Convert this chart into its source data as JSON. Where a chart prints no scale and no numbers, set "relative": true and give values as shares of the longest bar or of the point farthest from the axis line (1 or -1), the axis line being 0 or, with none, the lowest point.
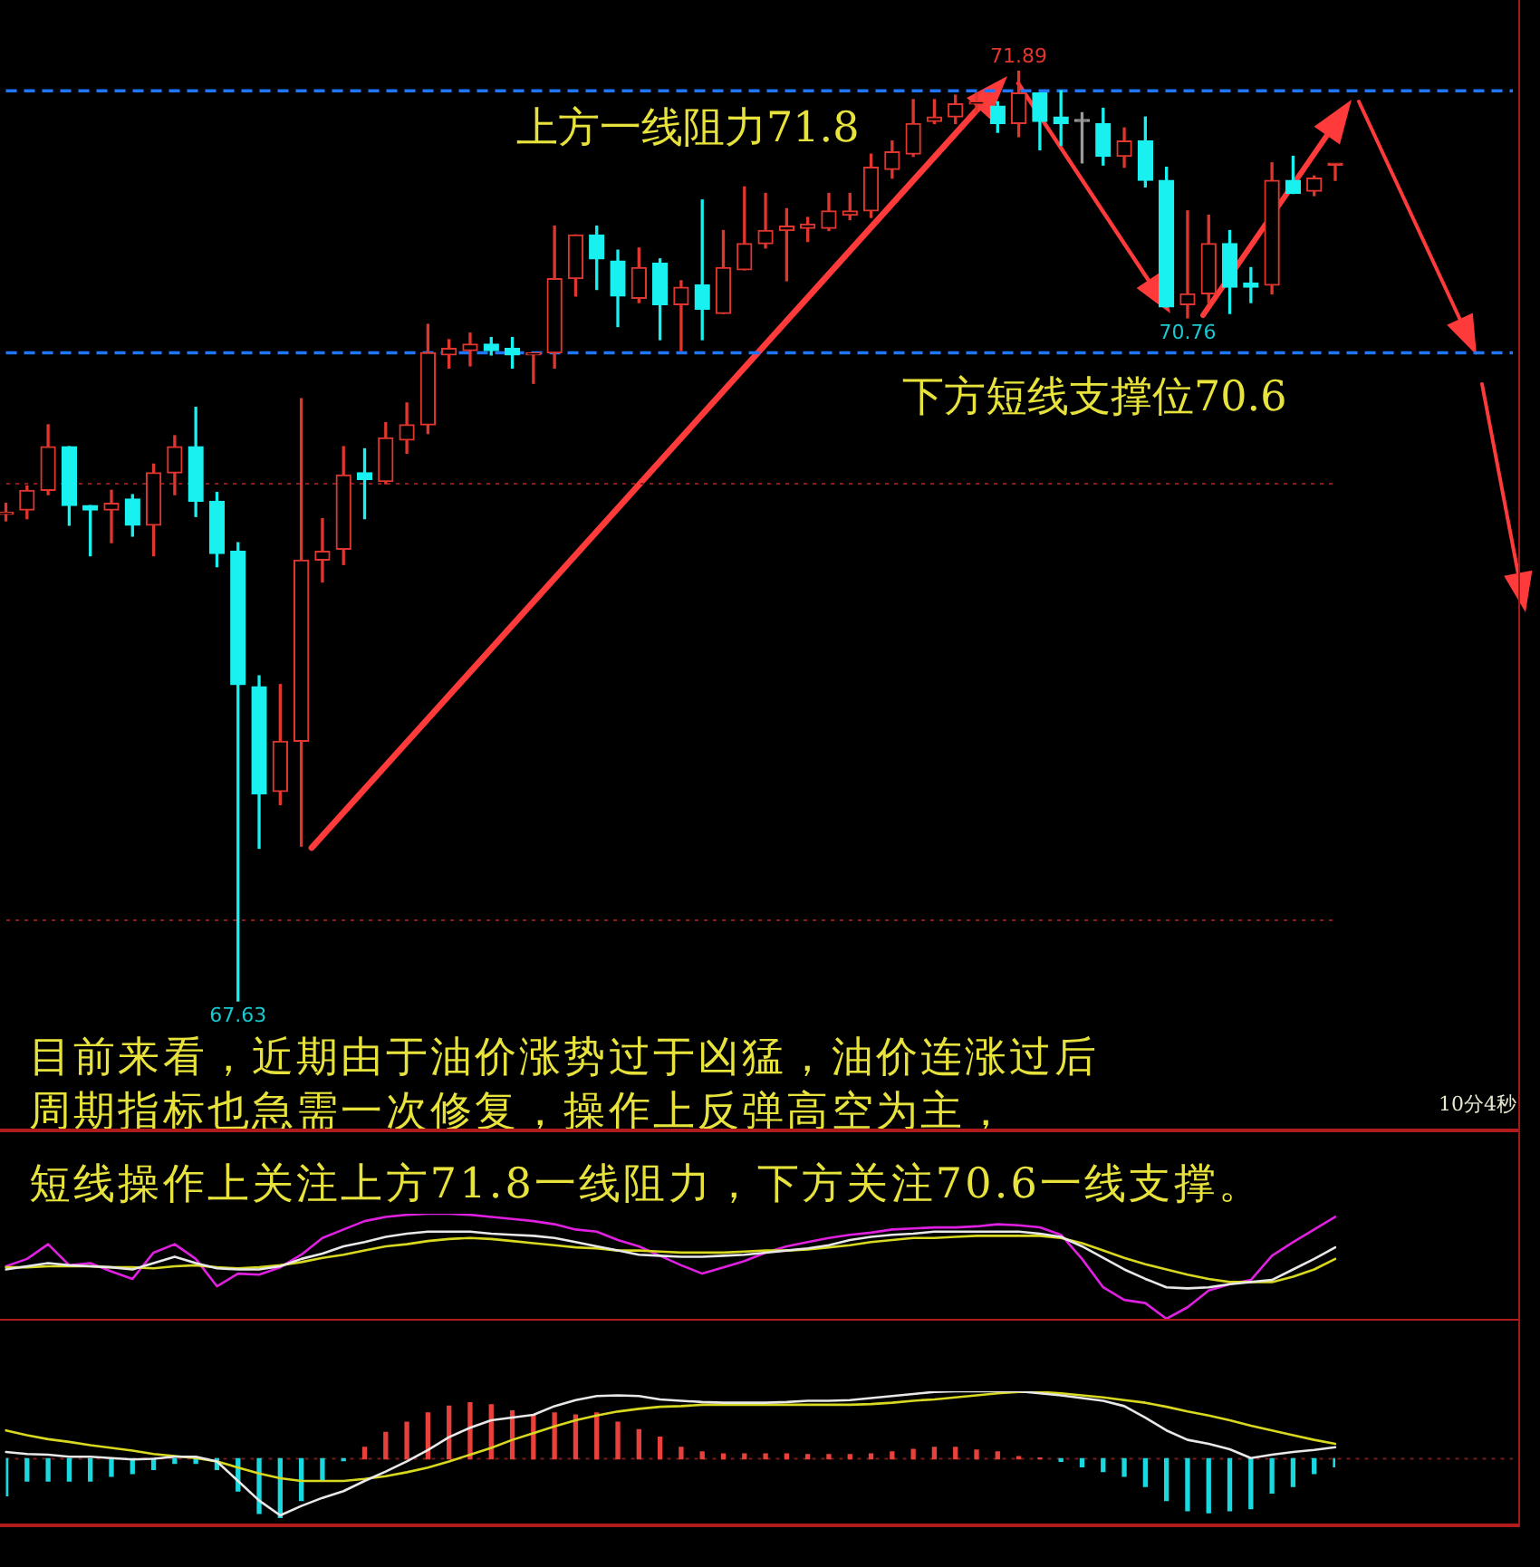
{
  "chart_data": [
    {
      "type": "candlestick",
      "categories": [
        null,
        null,
        null,
        null,
        null,
        null,
        null,
        null,
        null,
        null,
        null,
        null,
        null,
        null,
        null,
        null,
        null,
        null,
        null,
        null,
        null,
        null,
        null,
        null,
        null,
        null,
        null,
        null,
        null,
        null,
        null,
        null,
        null,
        null,
        null,
        null,
        null,
        null,
        null,
        null,
        null,
        null,
        null,
        null,
        null,
        null,
        null,
        null,
        null,
        null,
        null,
        null,
        null,
        null,
        null,
        null,
        null,
        null,
        null,
        null,
        null,
        null,
        null,
        null
      ],
      "ohlc": [
        [
          69.86,
          69.91,
          69.83,
          69.87
        ],
        [
          69.88,
          69.99,
          69.84,
          69.97
        ],
        [
          69.97,
          70.27,
          69.95,
          70.17
        ],
        [
          70.17,
          70.17,
          69.81,
          69.9
        ],
        [
          69.9,
          69.9,
          69.67,
          69.88
        ],
        [
          69.88,
          69.97,
          69.73,
          69.91
        ],
        [
          69.93,
          69.95,
          69.76,
          69.81
        ],
        [
          69.81,
          70.09,
          69.67,
          70.05
        ],
        [
          70.05,
          70.22,
          69.95,
          70.17
        ],
        [
          70.17,
          70.35,
          69.85,
          69.92
        ],
        [
          69.92,
          69.96,
          69.62,
          69.68
        ],
        [
          69.69,
          69.73,
          67.63,
          69.08
        ],
        [
          69.07,
          69.12,
          68.33,
          68.58
        ],
        [
          68.59,
          69.08,
          68.53,
          68.82
        ],
        [
          68.82,
          70.39,
          68.34,
          69.65
        ],
        [
          69.65,
          69.84,
          69.55,
          69.69
        ],
        [
          69.7,
          70.17,
          69.63,
          70.04
        ],
        [
          70.05,
          70.16,
          69.84,
          70.02
        ],
        [
          70.01,
          70.28,
          70.0,
          70.21
        ],
        [
          70.2,
          70.37,
          70.14,
          70.27
        ],
        [
          70.27,
          70.73,
          70.23,
          70.6
        ],
        [
          70.59,
          70.66,
          70.53,
          70.62
        ],
        [
          70.61,
          70.69,
          70.54,
          70.64
        ],
        [
          70.64,
          70.67,
          70.59,
          70.61
        ],
        [
          70.62,
          70.67,
          70.53,
          70.59
        ],
        [
          70.59,
          70.6,
          70.46,
          70.6
        ],
        [
          70.6,
          71.18,
          70.53,
          70.94
        ],
        [
          70.94,
          71.14,
          70.86,
          71.14
        ],
        [
          71.14,
          71.18,
          70.89,
          71.03
        ],
        [
          71.02,
          71.07,
          70.72,
          70.86
        ],
        [
          70.85,
          71.08,
          70.83,
          70.99
        ],
        [
          71.01,
          71.03,
          70.66,
          70.82
        ],
        [
          70.82,
          70.93,
          70.61,
          70.9
        ],
        [
          70.91,
          71.3,
          70.66,
          70.8
        ],
        [
          70.78,
          71.16,
          70.78,
          70.99
        ],
        [
          70.98,
          71.36,
          70.98,
          71.1
        ],
        [
          71.1,
          71.33,
          71.08,
          71.16
        ],
        [
          71.16,
          71.26,
          70.93,
          71.18
        ],
        [
          71.17,
          71.22,
          71.11,
          71.19
        ],
        [
          71.17,
          71.33,
          71.16,
          71.25
        ],
        [
          71.23,
          71.33,
          71.21,
          71.25
        ],
        [
          71.25,
          71.51,
          71.22,
          71.45
        ],
        [
          71.44,
          71.57,
          71.4,
          71.52
        ],
        [
          71.51,
          71.76,
          71.5,
          71.65
        ],
        [
          71.66,
          71.76,
          71.65,
          71.68
        ],
        [
          71.68,
          71.78,
          71.65,
          71.74
        ],
        [
          71.74,
          71.79,
          71.7,
          71.75
        ],
        [
          71.73,
          71.75,
          71.61,
          71.65
        ],
        [
          71.65,
          71.89,
          71.59,
          71.79
        ],
        [
          71.79,
          71.79,
          71.53,
          71.66
        ],
        [
          71.68,
          71.8,
          71.55,
          71.65
        ],
        [
          71.66,
          71.7,
          71.47,
          71.66
        ],
        [
          71.65,
          71.72,
          71.46,
          71.5
        ],
        [
          71.5,
          71.63,
          71.45,
          71.57
        ],
        [
          71.57,
          71.68,
          71.36,
          71.39
        ],
        [
          71.39,
          71.45,
          70.81,
          70.81
        ],
        [
          70.82,
          71.25,
          70.76,
          70.87
        ],
        [
          70.87,
          71.23,
          70.83,
          71.1
        ],
        [
          71.1,
          71.16,
          70.78,
          70.9
        ],
        [
          70.92,
          70.99,
          70.83,
          70.9
        ],
        [
          70.91,
          71.47,
          70.87,
          71.39
        ],
        [
          71.39,
          71.5,
          71.33,
          71.33
        ],
        [
          71.34,
          71.41,
          71.32,
          71.4
        ],
        [
          71.46,
          71.46,
          71.39,
          71.46
        ]
      ],
      "colors": [
        "#e0362e",
        "#e0362e",
        "#e0362e",
        "#19f0f0",
        "#19f0f0",
        "#e0362e",
        "#19f0f0",
        "#e0362e",
        "#e0362e",
        "#19f0f0",
        "#19f0f0",
        "#19f0f0",
        "#19f0f0",
        "#e0362e",
        "#e0362e",
        "#e0362e",
        "#e0362e",
        "#19f0f0",
        "#e0362e",
        "#e0362e",
        "#e0362e",
        "#e0362e",
        "#e0362e",
        "#19f0f0",
        "#19f0f0",
        "#e0362e",
        "#e0362e",
        "#e0362e",
        "#19f0f0",
        "#19f0f0",
        "#e0362e",
        "#19f0f0",
        "#e0362e",
        "#19f0f0",
        "#e0362e",
        "#e0362e",
        "#e0362e",
        "#e0362e",
        "#e0362e",
        "#e0362e",
        "#e0362e",
        "#e0362e",
        "#e0362e",
        "#e0362e",
        "#e0362e",
        "#e0362e",
        "#e0362e",
        "#19f0f0",
        "#e0362e",
        "#19f0f0",
        "#19f0f0",
        "#9a9a9a",
        "#19f0f0",
        "#e0362e",
        "#19f0f0",
        "#19f0f0",
        "#e0362e",
        "#e0362e",
        "#19f0f0",
        "#19f0f0",
        "#e0362e",
        "#19f0f0",
        "#e0362e",
        "#e0362e"
      ],
      "yticks": [
        {
          "value": 68,
          "label": null
        },
        {
          "value": 70,
          "label": null
        }
      ],
      "grid": "y",
      "tick_labels": false,
      "ref_lines": [
        {
          "axis": "y",
          "value": 71.8,
          "label": "上方一线阻力71.8",
          "color": "#1e78ff",
          "line_style": "dashed"
        },
        {
          "axis": "y",
          "value": 70.6,
          "label": "下方短线支撑位70.6",
          "color": "#1e78ff",
          "line_style": "dashed"
        }
      ],
      "annotations": [
        {
          "text": "71.89",
          "y": 71.89
        },
        {
          "text": "70.76",
          "y": 70.76
        },
        {
          "text": "67.63",
          "y": 67.63
        },
        "目前来看，近期由于油价涨势过于凶猛，油价连涨过后",
        "周期指标也急需一次修复，操作上反弹高空为主，",
        "短线操作上关注上方71.8一线阻力，下方关注70.6一线支撑。",
        "10分4秒"
      ]
    },
    {
      "type": "line",
      "relative": true,
      "marker": "none",
      "tick_labels": false,
      "categories": [
        null,
        null,
        null,
        null,
        null,
        null,
        null,
        null,
        null,
        null,
        null,
        null,
        null,
        null,
        null,
        null,
        null,
        null,
        null,
        null,
        null,
        null,
        null,
        null,
        null,
        null,
        null,
        null,
        null,
        null,
        null,
        null,
        null,
        null,
        null,
        null,
        null,
        null,
        null,
        null,
        null,
        null,
        null,
        null,
        null,
        null,
        null,
        null,
        null,
        null,
        null,
        null,
        null,
        null,
        null,
        null,
        null,
        null,
        null,
        null,
        null,
        null,
        null,
        null
      ],
      "series": [
        {
          "color": "#e8e8e8",
          "values": [
            0.47,
            0.5,
            0.53,
            0.51,
            0.5,
            0.49,
            0.47,
            0.53,
            0.59,
            0.53,
            0.48,
            0.47,
            0.47,
            0.5,
            0.57,
            0.62,
            0.69,
            0.73,
            0.78,
            0.81,
            0.83,
            0.83,
            0.83,
            0.81,
            0.8,
            0.79,
            0.77,
            0.73,
            0.69,
            0.65,
            0.61,
            0.6,
            0.59,
            0.59,
            0.6,
            0.61,
            0.63,
            0.65,
            0.67,
            0.7,
            0.75,
            0.78,
            0.8,
            0.81,
            0.83,
            0.83,
            0.83,
            0.83,
            0.83,
            0.81,
            0.78,
            0.69,
            0.58,
            0.47,
            0.38,
            0.3,
            0.29,
            0.3,
            0.33,
            0.35,
            0.37,
            0.47,
            0.57,
            0.68
          ]
        },
        {
          "color": "#d8d820",
          "values": [
            0.49,
            0.49,
            0.5,
            0.5,
            0.5,
            0.49,
            0.49,
            0.48,
            0.5,
            0.51,
            0.49,
            0.48,
            0.49,
            0.51,
            0.54,
            0.58,
            0.61,
            0.65,
            0.69,
            0.71,
            0.74,
            0.76,
            0.77,
            0.76,
            0.74,
            0.72,
            0.7,
            0.68,
            0.67,
            0.65,
            0.65,
            0.64,
            0.63,
            0.63,
            0.63,
            0.64,
            0.65,
            0.65,
            0.66,
            0.68,
            0.7,
            0.73,
            0.75,
            0.77,
            0.77,
            0.78,
            0.79,
            0.79,
            0.79,
            0.79,
            0.77,
            0.72,
            0.65,
            0.58,
            0.52,
            0.47,
            0.42,
            0.38,
            0.35,
            0.35,
            0.35,
            0.4,
            0.47,
            0.57
          ]
        },
        {
          "color": "#e020e0",
          "values": [
            0.5,
            0.57,
            0.71,
            0.51,
            0.53,
            0.45,
            0.38,
            0.63,
            0.71,
            0.57,
            0.31,
            0.43,
            0.42,
            0.49,
            0.61,
            0.77,
            0.85,
            0.93,
            0.97,
            0.99,
            1.0,
            1.0,
            0.99,
            0.97,
            0.95,
            0.93,
            0.9,
            0.85,
            0.83,
            0.75,
            0.69,
            0.6,
            0.51,
            0.43,
            0.49,
            0.55,
            0.63,
            0.69,
            0.73,
            0.77,
            0.8,
            0.82,
            0.85,
            0.86,
            0.87,
            0.87,
            0.88,
            0.9,
            0.89,
            0.87,
            0.8,
            0.57,
            0.3,
            0.18,
            0.15,
            0.0,
            0.11,
            0.27,
            0.33,
            0.37,
            0.6,
            0.73,
            0.85,
            0.97
          ]
        }
      ]
    },
    {
      "type": "bar",
      "relative": true,
      "marker": "none",
      "tick_labels": false,
      "categories": [
        null,
        null,
        null,
        null,
        null,
        null,
        null,
        null,
        null,
        null,
        null,
        null,
        null,
        null,
        null,
        null,
        null,
        null,
        null,
        null,
        null,
        null,
        null,
        null,
        null,
        null,
        null,
        null,
        null,
        null,
        null,
        null,
        null,
        null,
        null,
        null,
        null,
        null,
        null,
        null,
        null,
        null,
        null,
        null,
        null,
        null,
        null,
        null,
        null,
        null,
        null,
        null,
        null,
        null,
        null,
        null,
        null,
        null,
        null,
        null,
        null,
        null,
        null,
        null
      ],
      "ref_lines": [
        {
          "axis": "y",
          "value": 0,
          "color": "#7a1a1a",
          "line_style": "dotted"
        }
      ],
      "series": [
        {
          "colors": [
            "#19d8e0",
            "#19d8e0",
            "#19d8e0",
            "#19d8e0",
            "#19d8e0",
            "#19d8e0",
            "#19d8e0",
            "#19d8e0",
            "#19d8e0",
            "#19d8e0",
            "#19d8e0",
            "#19d8e0",
            "#19d8e0",
            "#19d8e0",
            "#19d8e0",
            "#19d8e0",
            "#19d8e0",
            "#e8403a",
            "#e8403a",
            "#e8403a",
            "#e8403a",
            "#e8403a",
            "#e8403a",
            "#e8403a",
            "#e8403a",
            "#e8403a",
            "#e8403a",
            "#e8403a",
            "#e8403a",
            "#e8403a",
            "#e8403a",
            "#e8403a",
            "#e8403a",
            "#e8403a",
            "#e8403a",
            "#e8403a",
            "#e8403a",
            "#e8403a",
            "#e8403a",
            "#e8403a",
            "#e8403a",
            "#e8403a",
            "#e8403a",
            "#e8403a",
            "#e8403a",
            "#e8403a",
            "#e8403a",
            "#e8403a",
            "#e8403a",
            "#e8403a",
            "#19d8e0",
            "#19d8e0",
            "#19d8e0",
            "#19d8e0",
            "#19d8e0",
            "#19d8e0",
            "#19d8e0",
            "#19d8e0",
            "#19d8e0",
            "#19d8e0",
            "#19d8e0",
            "#19d8e0",
            "#19d8e0",
            "#19d8e0"
          ],
          "values": [
            -0.55,
            -0.33,
            -0.33,
            -0.33,
            -0.33,
            -0.26,
            -0.22,
            -0.16,
            -0.07,
            -0.07,
            -0.16,
            -0.48,
            -0.81,
            -0.88,
            -0.62,
            -0.33,
            -0.03,
            0.17,
            0.39,
            0.54,
            0.68,
            0.78,
            0.83,
            0.8,
            0.71,
            0.65,
            0.68,
            0.65,
            0.68,
            0.54,
            0.43,
            0.32,
            0.17,
            0.1,
            0.07,
            0.07,
            0.07,
            0.07,
            0.06,
            0.06,
            0.06,
            0.07,
            0.1,
            0.14,
            0.17,
            0.17,
            0.13,
            0.1,
            0.03,
            0.01,
            -0.04,
            -0.12,
            -0.19,
            -0.26,
            -0.41,
            -0.62,
            -0.77,
            -0.8,
            -0.77,
            -0.74,
            -0.51,
            -0.41,
            -0.22,
            -0.12
          ]
        },
        {
          "type": "line",
          "color": "#e8e8e8",
          "values": [
            0.1,
            0.07,
            0.06,
            0.03,
            0.03,
            0.01,
            -0.01,
            0.0,
            0.03,
            0.03,
            -0.04,
            -0.33,
            -0.62,
            -0.84,
            -0.7,
            -0.58,
            -0.48,
            -0.33,
            -0.19,
            -0.04,
            0.13,
            0.32,
            0.46,
            0.57,
            0.61,
            0.65,
            0.78,
            0.87,
            0.93,
            0.94,
            0.93,
            0.88,
            0.86,
            0.84,
            0.83,
            0.83,
            0.83,
            0.84,
            0.86,
            0.86,
            0.87,
            0.9,
            0.93,
            0.96,
            0.99,
            1.0,
            1.0,
            1.0,
            1.0,
            0.97,
            0.94,
            0.9,
            0.86,
            0.78,
            0.61,
            0.42,
            0.28,
            0.22,
            0.14,
            0.01,
            0.06,
            0.1,
            0.13,
            0.17
          ]
        },
        {
          "type": "line",
          "color": "#d8d820",
          "values": [
            0.42,
            0.35,
            0.29,
            0.25,
            0.2,
            0.16,
            0.12,
            0.07,
            0.04,
            0.01,
            -0.04,
            -0.13,
            -0.22,
            -0.29,
            -0.33,
            -0.33,
            -0.33,
            -0.3,
            -0.26,
            -0.2,
            -0.13,
            -0.04,
            0.06,
            0.16,
            0.28,
            0.38,
            0.48,
            0.57,
            0.64,
            0.7,
            0.74,
            0.77,
            0.78,
            0.8,
            0.8,
            0.8,
            0.8,
            0.8,
            0.8,
            0.8,
            0.8,
            0.81,
            0.83,
            0.86,
            0.88,
            0.91,
            0.94,
            0.97,
            0.99,
            0.99,
            0.97,
            0.94,
            0.91,
            0.87,
            0.83,
            0.77,
            0.7,
            0.64,
            0.57,
            0.49,
            0.42,
            0.35,
            0.28,
            0.22
          ]
        }
      ]
    }
  ]
}
